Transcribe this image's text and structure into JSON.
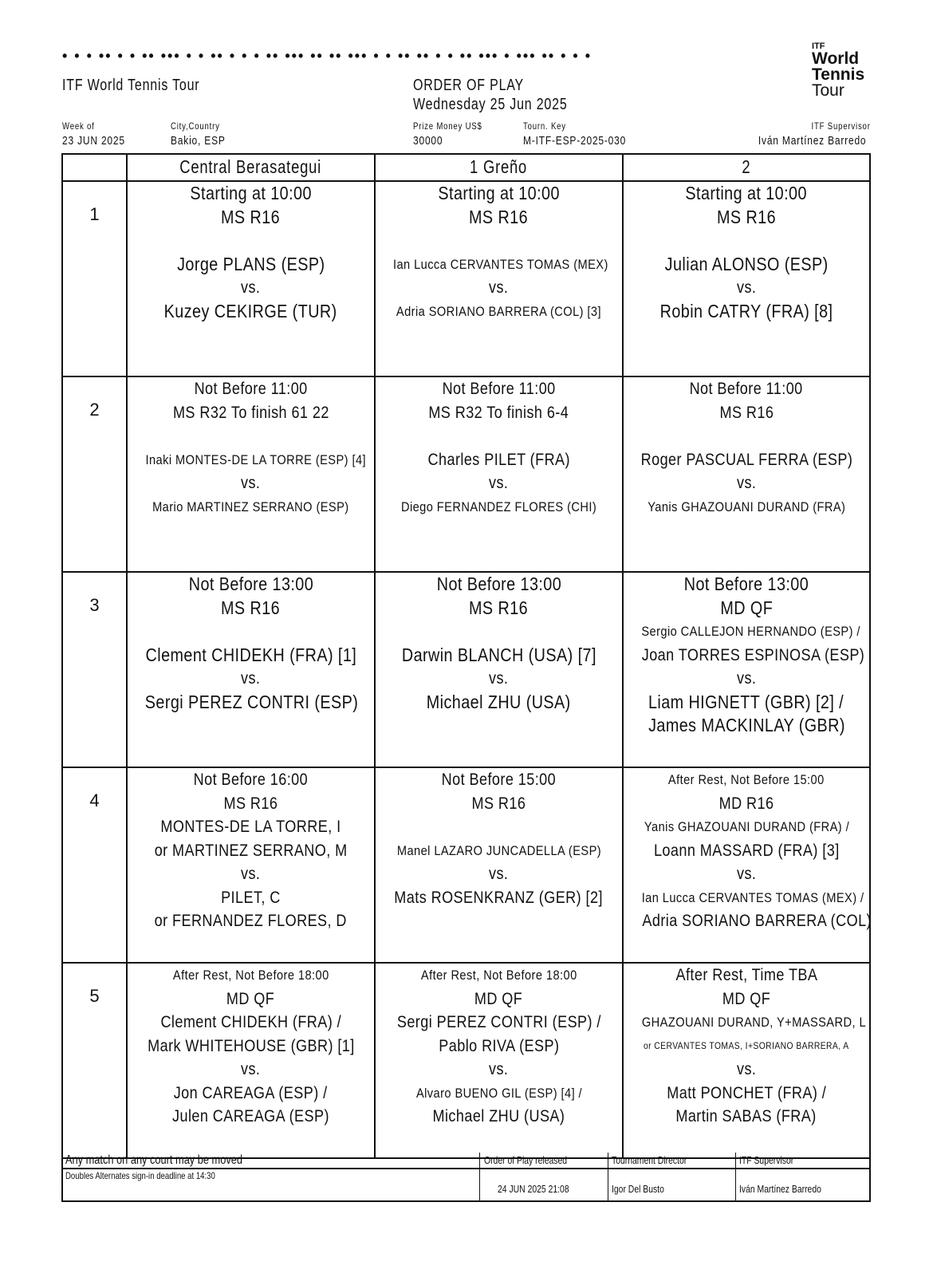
{
  "header": {
    "dots": "•  • • •• • • •• ••• • • •• • • • •• ••• •• •• ••• • • •• •• • • •• ••• • ••• •• • • •",
    "logo": {
      "itf": "ITF",
      "line1": "World",
      "line2": "Tennis",
      "line3": "Tour"
    },
    "tour_name": "ITF World Tennis Tour",
    "title": "ORDER OF PLAY",
    "date": "Wednesday 25 Jun 2025",
    "week_label": "Week of",
    "week_value": "23 JUN 2025",
    "city_label": "City,Country",
    "city_value": "Bakio, ESP",
    "prize_label": "Prize Money US$",
    "prize_value": "30000",
    "key_label": "Tourn. Key",
    "key_value": "M-ITF-ESP-2025-030",
    "supervisor_label": "ITF Supervisor",
    "supervisor_value": "Iván Martínez Barredo"
  },
  "courts": [
    "Central Berasategui",
    "1 Greño",
    "2"
  ],
  "rows": [
    {
      "num": "1",
      "cells": [
        [
          [
            "lg",
            "Starting at 10:00"
          ],
          [
            "lg",
            "MS R16"
          ],
          [
            "lg",
            ""
          ],
          [
            "lg",
            "Jorge PLANS (ESP)"
          ],
          [
            "md",
            "vs."
          ],
          [
            "lg",
            "Kuzey CEKIRGE (TUR)"
          ]
        ],
        [
          [
            "lg",
            "Starting at 10:00"
          ],
          [
            "lg",
            "MS R16"
          ],
          [
            "lg",
            ""
          ],
          [
            "sm",
            "Ian Lucca CERVANTES TOMAS (MEX)"
          ],
          [
            "md",
            "vs."
          ],
          [
            "sm",
            "Adria SORIANO BARRERA (COL) [3]"
          ]
        ],
        [
          [
            "lg",
            "Starting at 10:00"
          ],
          [
            "lg",
            "MS R16"
          ],
          [
            "lg",
            ""
          ],
          [
            "lg",
            "Julian ALONSO (ESP)"
          ],
          [
            "md",
            "vs."
          ],
          [
            "lg",
            "Robin CATRY (FRA) [8]"
          ]
        ]
      ]
    },
    {
      "num": "2",
      "cells": [
        [
          [
            "md",
            "Not Before 11:00"
          ],
          [
            "md",
            "MS R32 To finish 61 22"
          ],
          [
            "md",
            ""
          ],
          [
            "sm",
            "Inaki MONTES-DE LA TORRE (ESP) [4]"
          ],
          [
            "md",
            "vs."
          ],
          [
            "sm",
            "Mario MARTINEZ SERRANO (ESP)"
          ]
        ],
        [
          [
            "md",
            "Not Before 11:00"
          ],
          [
            "md",
            "MS R32 To finish 6-4"
          ],
          [
            "md",
            ""
          ],
          [
            "md",
            "Charles PILET (FRA)"
          ],
          [
            "md",
            "vs."
          ],
          [
            "sm",
            "Diego FERNANDEZ FLORES (CHI)"
          ]
        ],
        [
          [
            "md",
            "Not Before 11:00"
          ],
          [
            "md",
            "MS R16"
          ],
          [
            "md",
            ""
          ],
          [
            "md",
            "Roger PASCUAL FERRA (ESP)"
          ],
          [
            "md",
            "vs."
          ],
          [
            "sm",
            "Yanis GHAZOUANI DURAND (FRA)"
          ]
        ]
      ]
    },
    {
      "num": "3",
      "cells": [
        [
          [
            "lg",
            "Not Before 13:00"
          ],
          [
            "lg",
            "MS R16"
          ],
          [
            "lg",
            ""
          ],
          [
            "lg",
            "Clement CHIDEKH (FRA) [1]"
          ],
          [
            "md",
            "vs."
          ],
          [
            "lg",
            "Sergi PEREZ CONTRI (ESP)"
          ]
        ],
        [
          [
            "lg",
            "Not Before 13:00"
          ],
          [
            "lg",
            "MS R16"
          ],
          [
            "lg",
            ""
          ],
          [
            "lg",
            "Darwin BLANCH (USA) [7]"
          ],
          [
            "md",
            "vs."
          ],
          [
            "lg",
            "Michael ZHU (USA)"
          ]
        ],
        [
          [
            "lg",
            "Not Before 13:00"
          ],
          [
            "lg",
            "MD QF"
          ],
          [
            "sm",
            "Sergio CALLEJON HERNANDO (ESP) /"
          ],
          [
            "md",
            "Joan TORRES ESPINOSA (ESP)"
          ],
          [
            "md",
            "vs."
          ],
          [
            "lg",
            "Liam HIGNETT (GBR) [2] /"
          ],
          [
            "lg",
            "James MACKINLAY (GBR)"
          ]
        ]
      ]
    },
    {
      "num": "4",
      "cells": [
        [
          [
            "md",
            "Not Before 16:00"
          ],
          [
            "md",
            "MS R16"
          ],
          [
            "md",
            "MONTES-DE LA TORRE, I"
          ],
          [
            "md",
            "or MARTINEZ SERRANO, M"
          ],
          [
            "md",
            "vs."
          ],
          [
            "md",
            "PILET, C"
          ],
          [
            "md",
            "or FERNANDEZ FLORES, D"
          ]
        ],
        [
          [
            "md",
            "Not Before 15:00"
          ],
          [
            "md",
            "MS R16"
          ],
          [
            "md",
            ""
          ],
          [
            "sm",
            "Manel LAZARO JUNCADELLA (ESP)"
          ],
          [
            "md",
            "vs."
          ],
          [
            "md",
            "Mats ROSENKRANZ (GER) [2]"
          ]
        ],
        [
          [
            "sm",
            "After Rest, Not Before 15:00"
          ],
          [
            "md",
            "MD R16"
          ],
          [
            "sm",
            "Yanis GHAZOUANI DURAND (FRA) /"
          ],
          [
            "md",
            "Loann MASSARD (FRA) [3]"
          ],
          [
            "md",
            "vs."
          ],
          [
            "sm",
            "Ian Lucca CERVANTES TOMAS (MEX) /"
          ],
          [
            "md",
            "Adria SORIANO BARRERA (COL)"
          ]
        ]
      ]
    },
    {
      "num": "5",
      "cells": [
        [
          [
            "sm",
            "After Rest, Not Before 18:00"
          ],
          [
            "md",
            "MD QF"
          ],
          [
            "md",
            "Clement CHIDEKH (FRA) /"
          ],
          [
            "md",
            "Mark WHITEHOUSE (GBR) [1]"
          ],
          [
            "md",
            "vs."
          ],
          [
            "md",
            "Jon CAREAGA (ESP) /"
          ],
          [
            "md",
            "Julen CAREAGA (ESP)"
          ]
        ],
        [
          [
            "sm",
            "After Rest, Not Before 18:00"
          ],
          [
            "md",
            "MD QF"
          ],
          [
            "md",
            "Sergi PEREZ CONTRI (ESP) /"
          ],
          [
            "md",
            "Pablo RIVA (ESP)"
          ],
          [
            "md",
            "vs."
          ],
          [
            "sm",
            "Alvaro BUENO GIL (ESP) [4] /"
          ],
          [
            "md",
            "Michael ZHU (USA)"
          ]
        ],
        [
          [
            "md",
            "After Rest, Time TBA"
          ],
          [
            "md",
            "MD QF"
          ],
          [
            "sm",
            "GHAZOUANI DURAND, Y+MASSARD, L"
          ],
          [
            "xs",
            "or CERVANTES TOMAS, I+SORIANO BARRERA, A"
          ],
          [
            "md",
            "vs."
          ],
          [
            "md",
            "Matt PONCHET (FRA) /"
          ],
          [
            "md",
            "Martin SABAS (FRA)"
          ]
        ]
      ]
    }
  ],
  "footer": {
    "note1": "Any match on any court may be moved",
    "note2": "Doubles Alternates sign-in deadline at 14:30",
    "released_label": "Order of Play released",
    "released_value": "24 JUN 2025 21:08",
    "director_label": "Tournament Director",
    "director_value": "Igor Del Busto",
    "supervisor_label": "ITF Supervisor",
    "supervisor_value": "Iván Martínez Barredo"
  }
}
